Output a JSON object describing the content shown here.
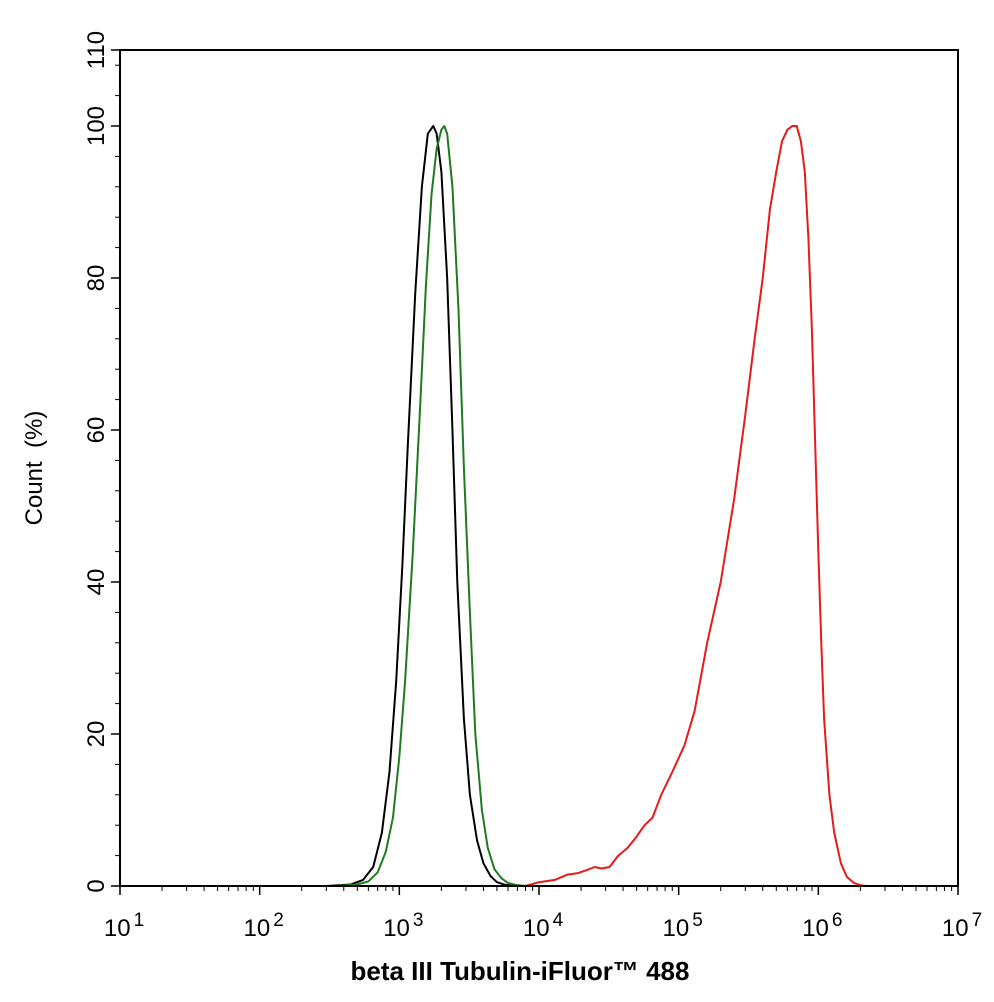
{
  "chart_data": {
    "type": "line",
    "title": "",
    "xlabel": "beta III Tubulin-iFluor™ 488",
    "ylabel": "Count  (%)",
    "x_scale": "log",
    "xlim": [
      10,
      10000000
    ],
    "ylim": [
      0,
      110
    ],
    "x_tick_labels": [
      {
        "value": 10,
        "base": "10",
        "exp": "1"
      },
      {
        "value": 100,
        "base": "10",
        "exp": "2"
      },
      {
        "value": 1000,
        "base": "10",
        "exp": "3"
      },
      {
        "value": 10000,
        "base": "10",
        "exp": "4"
      },
      {
        "value": 100000,
        "base": "10",
        "exp": "5"
      },
      {
        "value": 1000000,
        "base": "10",
        "exp": "6"
      },
      {
        "value": 10000000,
        "base": "10",
        "exp": "7"
      }
    ],
    "y_ticks": [
      0,
      20,
      40,
      60,
      80,
      100,
      110
    ],
    "y_tick_labels": [
      "0",
      "20",
      "40",
      "60",
      "80",
      "100",
      "110"
    ],
    "grid": false,
    "legend": "none",
    "series": [
      {
        "color": "#000000",
        "x": [
          300,
          450,
          550,
          650,
          750,
          850,
          950,
          1050,
          1150,
          1300,
          1450,
          1600,
          1750,
          1850,
          2000,
          2200,
          2400,
          2600,
          2900,
          3200,
          3600,
          4000,
          4500,
          5000,
          5600,
          6300,
          7000
        ],
        "y": [
          0,
          0.2,
          0.8,
          2.5,
          7,
          15,
          27,
          42,
          58,
          78,
          92,
          99,
          100,
          99,
          94,
          80,
          60,
          40,
          22,
          12,
          6,
          3,
          1.3,
          0.5,
          0.2,
          0.05,
          0
        ]
      },
      {
        "color": "#1e7b1e",
        "x": [
          350,
          500,
          600,
          700,
          800,
          900,
          1000,
          1100,
          1250,
          1400,
          1550,
          1700,
          1850,
          2000,
          2100,
          2200,
          2400,
          2650,
          2900,
          3200,
          3500,
          3900,
          4300,
          4800,
          5400,
          6000,
          6800,
          7500,
          8500
        ],
        "y": [
          0,
          0.2,
          0.6,
          1.8,
          4.5,
          9,
          17,
          27,
          44,
          62,
          79,
          91,
          97,
          99.5,
          100,
          99,
          92,
          76,
          55,
          36,
          20,
          10,
          5,
          2.2,
          1,
          0.4,
          0.15,
          0.05,
          0
        ]
      },
      {
        "color": "#e41a1c",
        "x": [
          8000,
          10000,
          13000,
          16000,
          19000,
          22000,
          25000,
          28000,
          32000,
          37000,
          43000,
          50000,
          57000,
          65000,
          75000,
          90000,
          110000,
          130000,
          160000,
          200000,
          250000,
          300000,
          350000,
          400000,
          450000,
          500000,
          550000,
          600000,
          650000,
          700000,
          750000,
          800000,
          850000,
          900000,
          950000,
          1000000,
          1050000,
          1100000,
          1200000,
          1300000,
          1450000,
          1600000,
          1800000,
          2000000,
          2200000
        ],
        "y": [
          0,
          0.5,
          0.8,
          1.5,
          1.7,
          2.1,
          2.5,
          2.3,
          2.5,
          4,
          5,
          6.5,
          8,
          9,
          12,
          15,
          18.5,
          23,
          32,
          40,
          51,
          62,
          72,
          80,
          89,
          94,
          98,
          99.5,
          100,
          100,
          98,
          94,
          85,
          73,
          58,
          44,
          32,
          22,
          12,
          7,
          3,
          1.2,
          0.4,
          0.1,
          0
        ]
      }
    ]
  }
}
